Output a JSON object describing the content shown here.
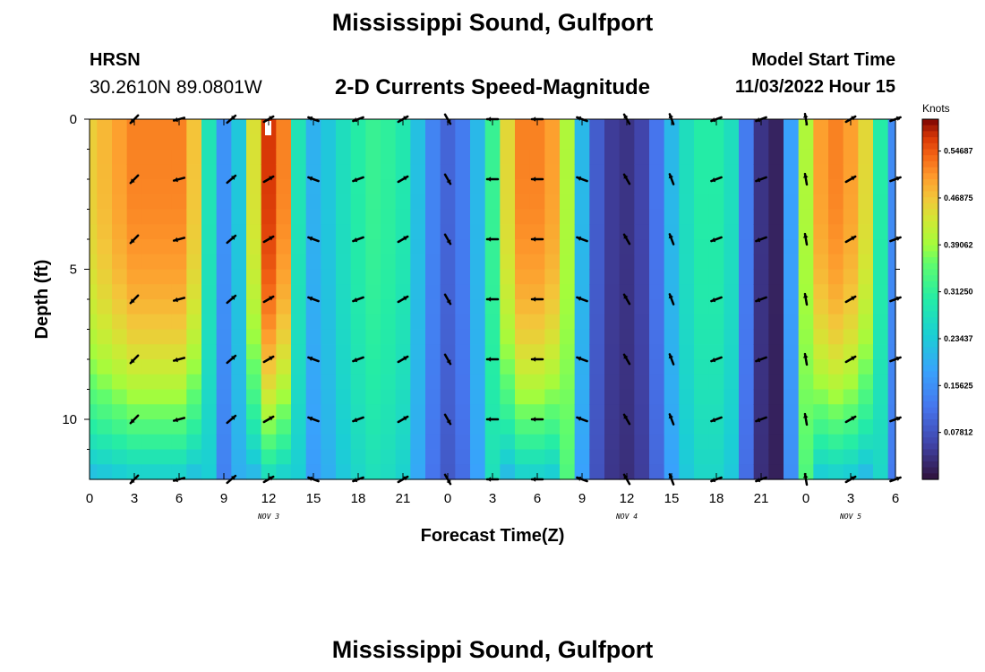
{
  "header": {
    "title": "Mississippi Sound, Gulfport",
    "station_name": "HRSN",
    "station_coords": "30.2610N  89.0801W",
    "subtitle": "2-D Currents Speed-Magnitude",
    "model_label": "Model Start Time",
    "model_time": "11/03/2022 Hour 15"
  },
  "footer": {
    "repeat_title": "Mississippi Sound, Gulfport"
  },
  "chart_data": {
    "type": "heatmap",
    "title": "2-D Currents Speed-Magnitude",
    "xlabel": "Forecast Time(Z)",
    "ylabel": "Depth (ft)",
    "x_hours": [
      0,
      54
    ],
    "ylim": [
      0,
      12
    ],
    "y_reversed": true,
    "x_tick_labels": [
      "0",
      "3",
      "6",
      "9",
      "12",
      "15",
      "18",
      "21",
      "0",
      "3",
      "6",
      "9",
      "12",
      "15",
      "18",
      "21",
      "0",
      "3",
      "6"
    ],
    "y_tick_labels": [
      "0",
      "5",
      "10"
    ],
    "y_tick_values": [
      0,
      5,
      10
    ],
    "date_labels": [
      {
        "hour": 12,
        "text": "NOV 3"
      },
      {
        "hour": 36,
        "text": "NOV 4"
      },
      {
        "hour": 51,
        "text": "NOV 5"
      }
    ],
    "colorbar": {
      "unit": "Knots",
      "range": [
        0,
        0.6
      ],
      "tick_values": [
        0.546875,
        0.46875,
        0.390625,
        0.3125,
        0.234375,
        0.15625,
        0.078125
      ],
      "tick_labels": [
        "0.54687",
        "0.46875",
        "0.39062",
        "0.31250",
        "0.23437",
        "0.15625",
        "0.07812"
      ],
      "colormap": "turbo"
    },
    "speed_profile": {
      "hours": [
        0,
        1,
        2,
        3,
        4,
        5,
        6,
        7,
        8,
        9,
        10,
        11,
        12,
        13,
        14,
        15,
        16,
        17,
        18,
        19,
        20,
        21,
        22,
        23,
        24,
        25,
        26,
        27,
        28,
        29,
        30,
        31,
        32,
        33,
        34,
        35,
        36,
        37,
        38,
        39,
        40,
        41,
        42,
        43,
        44,
        45,
        46,
        47,
        48,
        49,
        50,
        51,
        52,
        53,
        54
      ],
      "surface_speed_knots": [
        0.46,
        0.48,
        0.5,
        0.52,
        0.52,
        0.52,
        0.52,
        0.47,
        0.28,
        0.16,
        0.23,
        0.44,
        0.57,
        0.52,
        0.28,
        0.2,
        0.23,
        0.27,
        0.3,
        0.32,
        0.31,
        0.29,
        0.22,
        0.14,
        0.1,
        0.13,
        0.21,
        0.32,
        0.45,
        0.52,
        0.52,
        0.5,
        0.4,
        0.21,
        0.09,
        0.05,
        0.04,
        0.06,
        0.12,
        0.21,
        0.27,
        0.3,
        0.3,
        0.27,
        0.13,
        0.04,
        0.02,
        0.18,
        0.4,
        0.5,
        0.52,
        0.5,
        0.45,
        0.3,
        0.15
      ],
      "depth_factor": "speed decreases toward bottom; strong-flow columns stay high near the surface and taper below 8 ft"
    },
    "arrows": {
      "note": "black vectors showing current direction",
      "columns_hours": [
        3,
        6,
        9.5,
        12,
        15,
        18,
        21,
        24,
        27,
        30,
        33,
        36,
        39,
        42,
        45,
        48,
        51,
        54
      ],
      "rows_depth_ft": [
        0,
        2,
        4,
        6,
        8,
        10,
        12
      ],
      "direction_by_column_deg": [
        225,
        195,
        40,
        30,
        160,
        200,
        30,
        300,
        180,
        180,
        160,
        120,
        110,
        200,
        200,
        100,
        30,
        20
      ]
    }
  }
}
